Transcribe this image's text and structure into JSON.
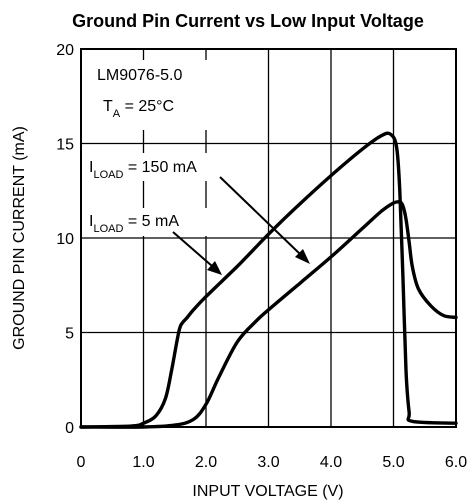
{
  "chart_data": {
    "type": "line",
    "title": "Ground Pin Current vs Low Input Voltage",
    "xlabel": "INPUT VOLTAGE (V)",
    "ylabel": "GROUND PIN CURRENT (mA)",
    "xlim": [
      0,
      6
    ],
    "ylim": [
      0,
      20
    ],
    "x_ticks": [
      "0",
      "1.0",
      "2.0",
      "3.0",
      "4.0",
      "5.0",
      "6.0"
    ],
    "y_ticks": [
      "0",
      "5",
      "10",
      "15",
      "20"
    ],
    "grid": true,
    "annotations": {
      "device": "LM9076-5.0",
      "temp_main": "T",
      "temp_sub": "A",
      "temp_rest": " = 25°C",
      "series1_main": "I",
      "series1_sub": "LOAD",
      "series1_rest": " = 150 mA",
      "series2_main": "I",
      "series2_sub": "LOAD",
      "series2_rest": " = 5 mA"
    },
    "series": [
      {
        "name": "ILOAD = 150 mA",
        "x": [
          0,
          0.8,
          1.0,
          1.2,
          1.35,
          1.45,
          1.55,
          1.6,
          1.7,
          1.8,
          2.0,
          2.5,
          3.0,
          3.5,
          4.0,
          4.5,
          4.8,
          4.95,
          5.05,
          5.1,
          5.15,
          5.2,
          5.25,
          5.3,
          6.0
        ],
        "y": [
          0,
          0.05,
          0.2,
          0.6,
          1.5,
          3.0,
          4.8,
          5.4,
          5.8,
          6.2,
          6.9,
          8.5,
          10.2,
          11.8,
          13.3,
          14.7,
          15.4,
          15.5,
          14.8,
          12.5,
          8.0,
          3.0,
          0.8,
          0.3,
          0.2
        ]
      },
      {
        "name": "ILOAD = 5 mA",
        "x": [
          0,
          1.0,
          1.5,
          1.8,
          2.0,
          2.2,
          2.5,
          2.8,
          3.0,
          3.5,
          4.0,
          4.5,
          4.8,
          5.0,
          5.1,
          5.15,
          5.2,
          5.25,
          5.3,
          5.4,
          5.6,
          5.8,
          6.0
        ],
        "y": [
          0,
          0.0,
          0.1,
          0.4,
          1.2,
          2.6,
          4.5,
          5.6,
          6.2,
          7.6,
          9.0,
          10.5,
          11.4,
          11.85,
          11.9,
          11.7,
          11.0,
          9.8,
          8.5,
          7.3,
          6.4,
          5.9,
          5.8
        ]
      }
    ]
  }
}
